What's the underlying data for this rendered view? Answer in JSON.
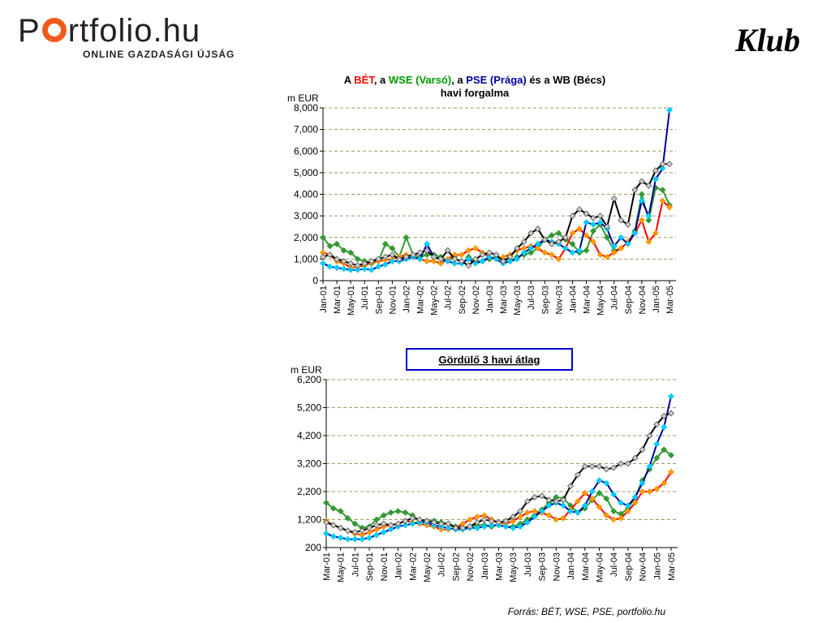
{
  "header": {
    "logo_prefix": "P",
    "logo_suffix": "rtfolio.hu",
    "logo_tagline": "ONLINE GAZDASÁGI ÚJSÁG",
    "klub": "Klub"
  },
  "colors": {
    "BET": "#ff9900",
    "WSE": "#339933",
    "PSE": "#00ccff",
    "WB": "#000000",
    "title_red": "#ff0000",
    "title_green": "#009900",
    "title_blue": "#000099",
    "grid": "#999966",
    "axis": "#000000"
  },
  "chart_data": [
    {
      "type": "line",
      "title_parts": [
        {
          "text": "A ",
          "color": "#000000"
        },
        {
          "text": "BÉT",
          "color": "#ff0000"
        },
        {
          "text": ", a ",
          "color": "#000000"
        },
        {
          "text": "WSE (Varsó)",
          "color": "#009900"
        },
        {
          "text": ", a ",
          "color": "#000000"
        },
        {
          "text": "PSE (Prága)",
          "color": "#000099"
        },
        {
          "text": " és a WB (Bécs)",
          "color": "#000000"
        }
      ],
      "title_line2": "havi forgalma",
      "unit": "m EUR",
      "ylim": [
        0,
        8000
      ],
      "yticks": [
        "0",
        "1,000",
        "2,000",
        "3,000",
        "4,000",
        "5,000",
        "6,000",
        "7,000",
        "8,000"
      ],
      "ytick_values": [
        0,
        1000,
        2000,
        3000,
        4000,
        5000,
        6000,
        7000,
        8000
      ],
      "xtick_labels": [
        "Jan-01",
        "Mar-01",
        "May-01",
        "Jul-01",
        "Sep-01",
        "Nov-01",
        "Jan-02",
        "Mar-02",
        "May-02",
        "Jul-02",
        "Sep-02",
        "Nov-02",
        "Jan-03",
        "Mar-03",
        "May-03",
        "Jul-03",
        "Sep-03",
        "Nov-03",
        "Jan-04",
        "Mar-04",
        "May-04",
        "Jul-04",
        "Sep-04",
        "Nov-04",
        "Jan-05",
        "Mar-05"
      ],
      "x_start": "Jan-01",
      "grid": true,
      "series": [
        {
          "key": "BET",
          "values": [
            1300,
            1200,
            900,
            800,
            600,
            650,
            700,
            850,
            900,
            950,
            1000,
            1100,
            1200,
            1100,
            1000,
            900,
            900,
            800,
            1000,
            1200,
            1200,
            1400,
            1500,
            1300,
            1100,
            1000,
            1100,
            1200,
            1400,
            1500,
            1600,
            1500,
            1300,
            1200,
            1000,
            1500,
            2200,
            2400,
            2100,
            1800,
            1200,
            1100,
            1300,
            1500,
            1800,
            2200,
            2800,
            1800,
            2200,
            3700,
            3400
          ]
        },
        {
          "key": "WSE",
          "values": [
            2000,
            1600,
            1700,
            1400,
            1300,
            1000,
            900,
            800,
            900,
            1700,
            1500,
            1100,
            2000,
            1200,
            1100,
            1200,
            1200,
            1100,
            900,
            1100,
            800,
            1100,
            900,
            900,
            1000,
            1100,
            1000,
            900,
            1100,
            1200,
            1300,
            1500,
            1900,
            2100,
            2200,
            1900,
            1700,
            1300,
            1400,
            2300,
            2600,
            2000,
            1400,
            1500,
            1800,
            2300,
            4000,
            2800,
            4300,
            4200,
            3500
          ]
        },
        {
          "key": "PSE",
          "values": [
            800,
            650,
            600,
            550,
            500,
            500,
            550,
            500,
            650,
            750,
            900,
            900,
            1000,
            1100,
            1000,
            1700,
            1100,
            1000,
            900,
            800,
            800,
            1000,
            800,
            900,
            1100,
            1000,
            800,
            900,
            1000,
            1300,
            1500,
            1700,
            1900,
            1800,
            1700,
            1500,
            1300,
            1400,
            2700,
            2600,
            2700,
            2400,
            1600,
            2000,
            1700,
            2200,
            3700,
            3000,
            4700,
            5200,
            7900
          ]
        },
        {
          "key": "WB",
          "values": [
            1100,
            1200,
            1000,
            900,
            800,
            700,
            800,
            900,
            1000,
            1100,
            1200,
            1000,
            1100,
            1200,
            1300,
            1400,
            1100,
            1000,
            1400,
            1000,
            900,
            700,
            1000,
            1200,
            1300,
            1200,
            900,
            1100,
            1500,
            1800,
            2200,
            2400,
            1900,
            1700,
            1800,
            2000,
            3000,
            3300,
            3100,
            2900,
            3000,
            2500,
            3800,
            2800,
            2600,
            4200,
            4600,
            4400,
            5100,
            5400,
            5400
          ]
        }
      ]
    },
    {
      "type": "line",
      "title": "Gördülő 3 havi átlag",
      "unit": "m EUR",
      "ylim": [
        200,
        6200
      ],
      "yticks": [
        "200",
        "1,200",
        "2,200",
        "3,200",
        "4,200",
        "5,200",
        "6,200"
      ],
      "ytick_values": [
        200,
        1200,
        2200,
        3200,
        4200,
        5200,
        6200
      ],
      "xtick_labels": [
        "Mar-01",
        "May-01",
        "Jul-01",
        "Sep-01",
        "Nov-01",
        "Jan-02",
        "Mar-02",
        "May-02",
        "Jul-02",
        "Sep-02",
        "Nov-02",
        "Jan-03",
        "Mar-03",
        "May-03",
        "Jul-03",
        "Sep-03",
        "Nov-03",
        "Jan-04",
        "Mar-04",
        "May-04",
        "Jul-04",
        "Sep-04",
        "Nov-04",
        "Jan-05",
        "Mar-05"
      ],
      "x_start": "Mar-01",
      "grid": true,
      "series": [
        {
          "key": "BET",
          "values": [
            1150,
            1000,
            900,
            800,
            700,
            650,
            750,
            850,
            950,
            1000,
            1050,
            1150,
            1100,
            1050,
            1000,
            950,
            850,
            850,
            900,
            1050,
            1200,
            1300,
            1350,
            1200,
            1100,
            1050,
            1150,
            1300,
            1450,
            1500,
            1450,
            1350,
            1200,
            1250,
            1550,
            1850,
            2150,
            1950,
            1650,
            1350,
            1200,
            1250,
            1500,
            1800,
            2200,
            2200,
            2300,
            2500,
            2900
          ]
        },
        {
          "key": "WSE",
          "values": [
            1800,
            1600,
            1500,
            1250,
            1050,
            900,
            950,
            1200,
            1350,
            1450,
            1500,
            1450,
            1350,
            1150,
            1150,
            1150,
            1100,
            1050,
            950,
            900,
            950,
            1000,
            1000,
            950,
            1000,
            950,
            950,
            1050,
            1200,
            1350,
            1550,
            1800,
            2000,
            1950,
            1700,
            1450,
            1600,
            1900,
            2150,
            1950,
            1500,
            1400,
            1600,
            2000,
            2600,
            3000,
            3400,
            3700,
            3500
          ]
        },
        {
          "key": "PSE",
          "values": [
            700,
            600,
            550,
            500,
            500,
            500,
            550,
            650,
            750,
            850,
            950,
            1000,
            1050,
            1100,
            1100,
            1000,
            950,
            900,
            850,
            850,
            900,
            900,
            950,
            1000,
            1000,
            950,
            900,
            950,
            1100,
            1300,
            1500,
            1700,
            1800,
            1700,
            1500,
            1450,
            1700,
            2200,
            2600,
            2500,
            2100,
            1800,
            1700,
            2000,
            2500,
            3100,
            3900,
            4500,
            5600
          ]
        },
        {
          "key": "WB",
          "values": [
            1100,
            1000,
            900,
            800,
            750,
            800,
            900,
            1000,
            1050,
            1000,
            1050,
            1150,
            1250,
            1200,
            1150,
            1100,
            1050,
            1050,
            900,
            900,
            950,
            1100,
            1200,
            1150,
            1100,
            1150,
            1300,
            1500,
            1850,
            2000,
            2050,
            1900,
            1850,
            1900,
            2400,
            2800,
            3100,
            3100,
            3100,
            3000,
            3050,
            3200,
            3200,
            3400,
            3700,
            4200,
            4600,
            4900,
            5000
          ]
        }
      ],
      "source": "Forrás: BÉT, WSE, PSE, portfolio.hu"
    }
  ]
}
